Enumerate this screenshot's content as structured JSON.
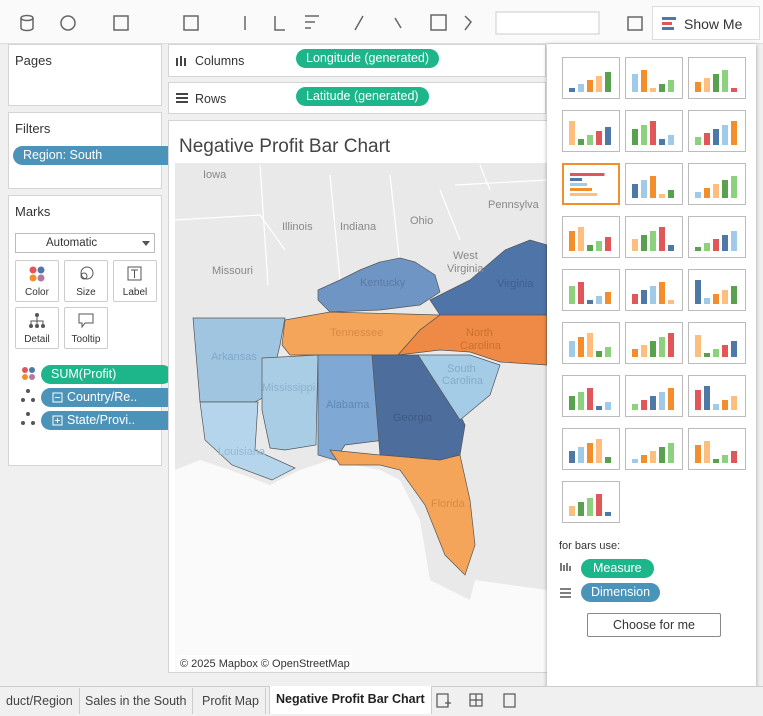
{
  "toolbar": {
    "show_me": "Show Me"
  },
  "pages": {
    "title": "Pages"
  },
  "filters": {
    "title": "Filters",
    "pills": [
      "Region: South"
    ]
  },
  "marks": {
    "title": "Marks",
    "mark_type": "Automatic",
    "buttons": [
      "Color",
      "Size",
      "Label",
      "Detail",
      "Tooltip"
    ],
    "pills": [
      "SUM(Profit)",
      "Country/Re..",
      "State/Provi.."
    ]
  },
  "shelves": {
    "columns": {
      "label": "Columns",
      "pill": "Longitude (generated)"
    },
    "rows": {
      "label": "Rows",
      "pill": "Latitude (generated)"
    }
  },
  "view": {
    "title": "Negative Profit Bar Chart",
    "map_labels": [
      "Iowa",
      "Illinois",
      "Indiana",
      "Ohio",
      "Pennsylva",
      "Missouri",
      "Kentucky",
      "West",
      "Virginia",
      "Virginia",
      "Tennessee",
      "North",
      "Carolina",
      "Arkansas",
      "Mississippi",
      "Alabama",
      "Georgia",
      "South",
      "Carolina",
      "Louisiana",
      "Florida"
    ],
    "attribution": "© 2025 Mapbox © OpenStreetMap"
  },
  "show_me": {
    "hint": "for bars use:",
    "requirements": [
      "Measure",
      "Dimension"
    ],
    "button": "Choose for me"
  },
  "tabs": [
    "duct/Region",
    "Sales in the South",
    "Profit Map",
    "Negative Profit Bar Chart"
  ]
}
